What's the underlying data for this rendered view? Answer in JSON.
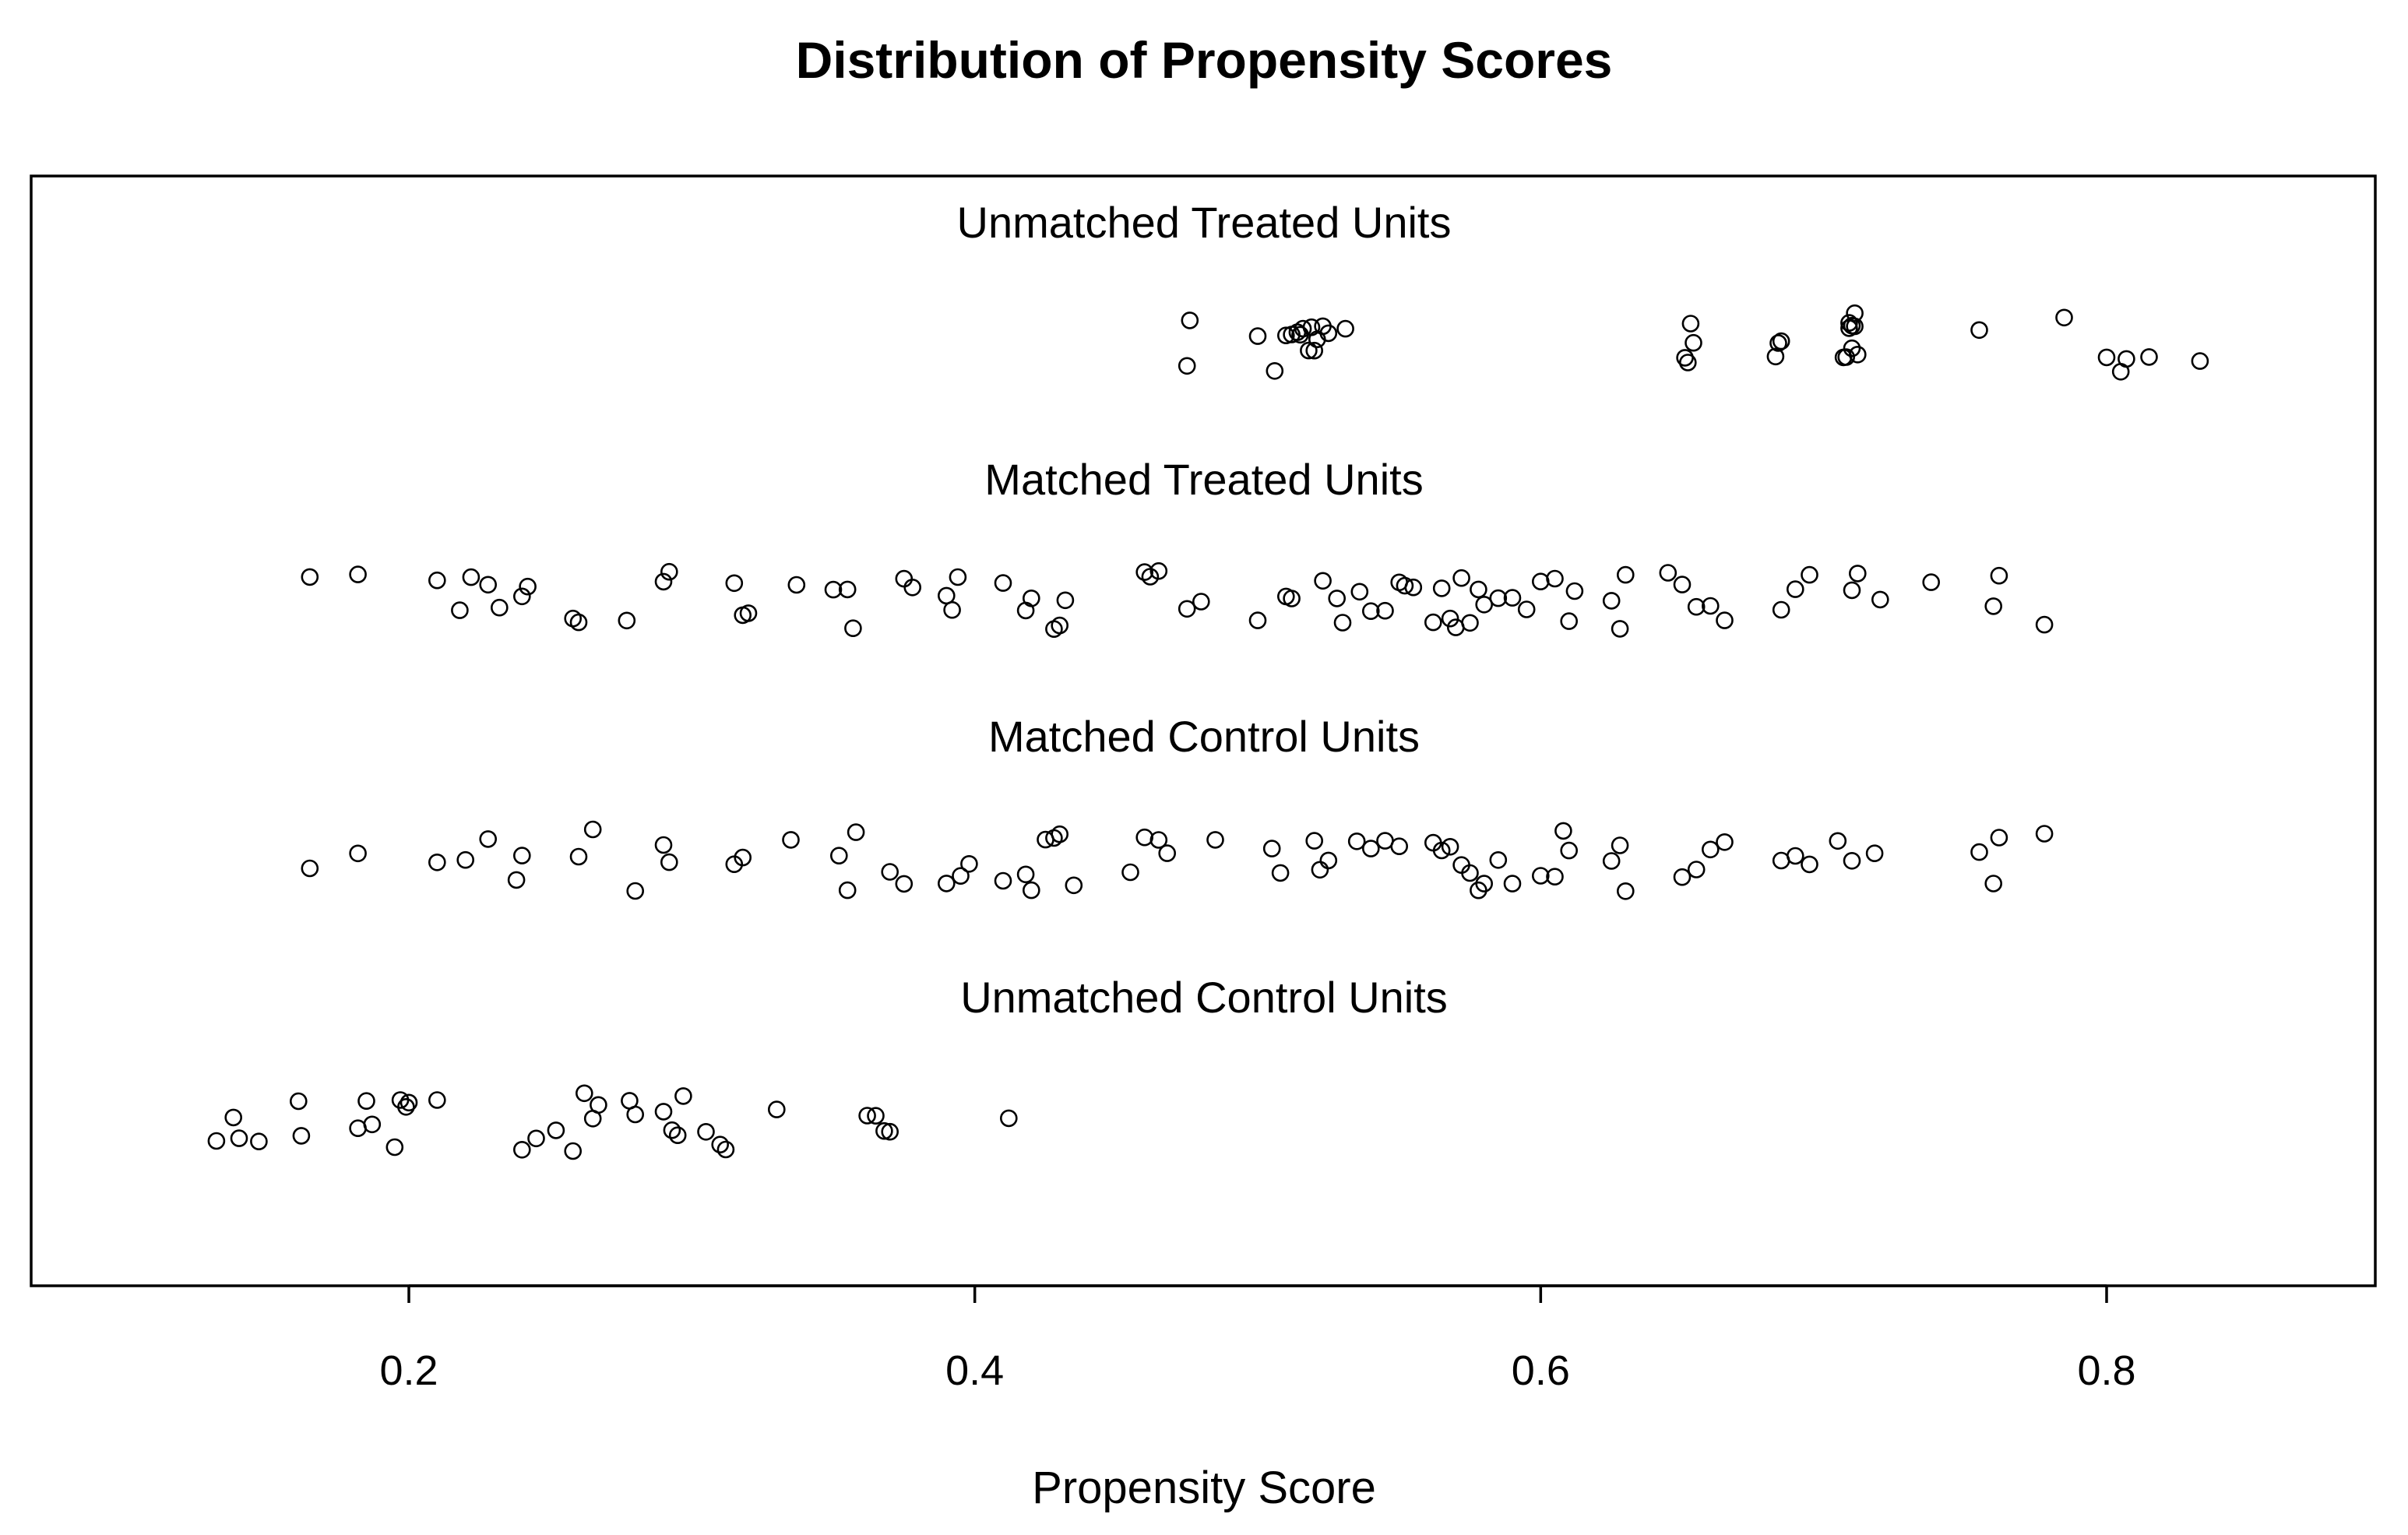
{
  "chart_data": {
    "type": "scatter",
    "title": "Distribution of Propensity Scores",
    "xlabel": "Propensity Score",
    "ylabel": "",
    "xlim": [
      0.07,
      0.9
    ],
    "x_ticks": [
      {
        "value": 0.2,
        "label": "0.2"
      },
      {
        "value": 0.4,
        "label": "0.4"
      },
      {
        "value": 0.6,
        "label": "0.6"
      },
      {
        "value": 0.8,
        "label": "0.8"
      }
    ],
    "grid": false,
    "series": [
      {
        "name": "Unmatched Treated Units",
        "values": [
          0.475,
          0.476,
          0.5,
          0.506,
          0.51,
          0.512,
          0.514,
          0.515,
          0.516,
          0.518,
          0.519,
          0.52,
          0.521,
          0.523,
          0.525,
          0.531,
          0.651,
          0.652,
          0.653,
          0.654,
          0.683,
          0.684,
          0.685,
          0.707,
          0.708,
          0.709,
          0.709,
          0.71,
          0.71,
          0.711,
          0.711,
          0.712,
          0.755,
          0.785,
          0.8,
          0.805,
          0.807,
          0.815,
          0.833
        ]
      },
      {
        "name": "Matched Treated Units",
        "values": [
          0.165,
          0.182,
          0.21,
          0.218,
          0.222,
          0.228,
          0.232,
          0.24,
          0.242,
          0.258,
          0.26,
          0.277,
          0.29,
          0.292,
          0.315,
          0.318,
          0.32,
          0.337,
          0.35,
          0.355,
          0.357,
          0.375,
          0.378,
          0.39,
          0.392,
          0.394,
          0.41,
          0.418,
          0.42,
          0.428,
          0.43,
          0.432,
          0.46,
          0.462,
          0.465,
          0.475,
          0.48,
          0.5,
          0.51,
          0.512,
          0.523,
          0.528,
          0.53,
          0.536,
          0.54,
          0.545,
          0.55,
          0.552,
          0.555,
          0.562,
          0.565,
          0.568,
          0.57,
          0.572,
          0.575,
          0.578,
          0.58,
          0.585,
          0.59,
          0.595,
          0.6,
          0.605,
          0.61,
          0.612,
          0.625,
          0.628,
          0.63,
          0.645,
          0.65,
          0.655,
          0.66,
          0.665,
          0.685,
          0.69,
          0.695,
          0.71,
          0.712,
          0.72,
          0.738,
          0.76,
          0.762,
          0.778
        ],
        "display_note": "values shown are approximate positions read from the plot; points are vertically jittered"
      },
      {
        "name": "Matched Control Units",
        "values": [
          0.165,
          0.182,
          0.21,
          0.22,
          0.228,
          0.238,
          0.24,
          0.26,
          0.265,
          0.28,
          0.29,
          0.292,
          0.315,
          0.318,
          0.335,
          0.352,
          0.355,
          0.358,
          0.37,
          0.375,
          0.39,
          0.395,
          0.398,
          0.41,
          0.418,
          0.42,
          0.425,
          0.428,
          0.43,
          0.435,
          0.455,
          0.46,
          0.465,
          0.468,
          0.485,
          0.505,
          0.508,
          0.52,
          0.522,
          0.525,
          0.535,
          0.54,
          0.545,
          0.55,
          0.562,
          0.565,
          0.568,
          0.572,
          0.575,
          0.578,
          0.58,
          0.585,
          0.59,
          0.6,
          0.605,
          0.608,
          0.61,
          0.625,
          0.628,
          0.63,
          0.65,
          0.655,
          0.66,
          0.665,
          0.685,
          0.69,
          0.695,
          0.705,
          0.71,
          0.718,
          0.755,
          0.76,
          0.762,
          0.778
        ]
      },
      {
        "name": "Unmatched Control Units",
        "values": [
          0.132,
          0.138,
          0.14,
          0.147,
          0.161,
          0.162,
          0.182,
          0.185,
          0.187,
          0.195,
          0.197,
          0.199,
          0.2,
          0.21,
          0.24,
          0.245,
          0.252,
          0.258,
          0.262,
          0.265,
          0.267,
          0.278,
          0.28,
          0.29,
          0.293,
          0.295,
          0.297,
          0.305,
          0.31,
          0.312,
          0.33,
          0.362,
          0.365,
          0.368,
          0.37,
          0.412
        ]
      }
    ]
  }
}
